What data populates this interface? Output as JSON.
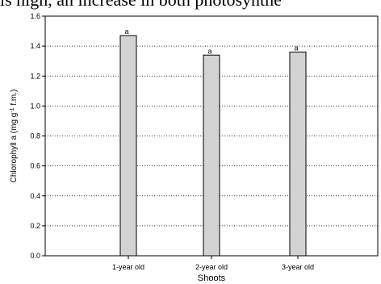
{
  "page_fragment_text": "is high, an increase in both photosynthe",
  "chart_data": {
    "type": "bar",
    "categories": [
      "1-year old",
      "2-year old",
      "3-year old"
    ],
    "values": [
      1.47,
      1.34,
      1.36
    ],
    "bar_labels": [
      "a",
      "a",
      "a"
    ],
    "xlabel": "Shoots",
    "ylabel_main": "Chlorophyll a (mg g",
    "ylabel_sup": "-1",
    "ylabel_tail": " f.m.)",
    "ylim": [
      0,
      1.6
    ],
    "yticks": [
      "0.0",
      "0.2",
      "0.4",
      "0.6",
      "0.8",
      "1.0",
      "1.2",
      "1.4",
      "1.6"
    ],
    "grid": "dotted horizontal",
    "bar_color": "#d3d3d3"
  }
}
